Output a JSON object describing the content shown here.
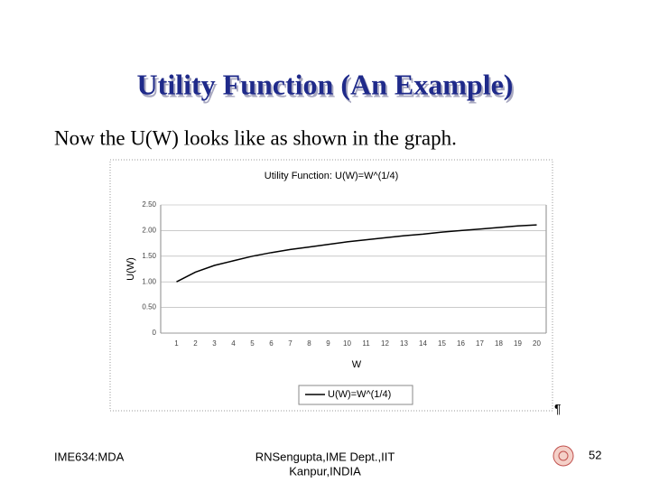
{
  "slide_title": "Utility Function (An Example)",
  "text": "Now the U(W) looks like as shown in the graph.",
  "pilcrow": "¶",
  "footer": {
    "left": "IME634:MDA",
    "center": [
      "RNSengupta,IME Dept.,IIT",
      "Kanpur,INDIA"
    ],
    "page": "52"
  },
  "chart_data": {
    "type": "line",
    "title": "Utility Function: U(W)=W^(1/4)",
    "x_label": "W",
    "y_label": "U(W)",
    "categories": [
      "1",
      "2",
      "3",
      "4",
      "5",
      "6",
      "7",
      "8",
      "9",
      "10",
      "11",
      "12",
      "13",
      "14",
      "15",
      "16",
      "17",
      "18",
      "19",
      "20"
    ],
    "series": [
      {
        "name": "U(W)=W^(1/4)",
        "color": "#000000",
        "values": [
          1.0,
          1.19,
          1.32,
          1.41,
          1.5,
          1.57,
          1.63,
          1.68,
          1.73,
          1.78,
          1.82,
          1.86,
          1.9,
          1.93,
          1.97,
          2.0,
          2.03,
          2.06,
          2.09,
          2.11
        ]
      }
    ],
    "ylim": [
      0,
      2.5
    ],
    "yticks": [
      0,
      {
        "value": 0.5,
        "label": "0.50"
      },
      {
        "value": 1,
        "label": "1.00"
      },
      {
        "value": 1.5,
        "label": "1.50"
      },
      {
        "value": 2,
        "label": "2.00"
      },
      {
        "value": 2.5,
        "label": "2.50"
      }
    ],
    "grid": true,
    "legend": "bottom"
  }
}
